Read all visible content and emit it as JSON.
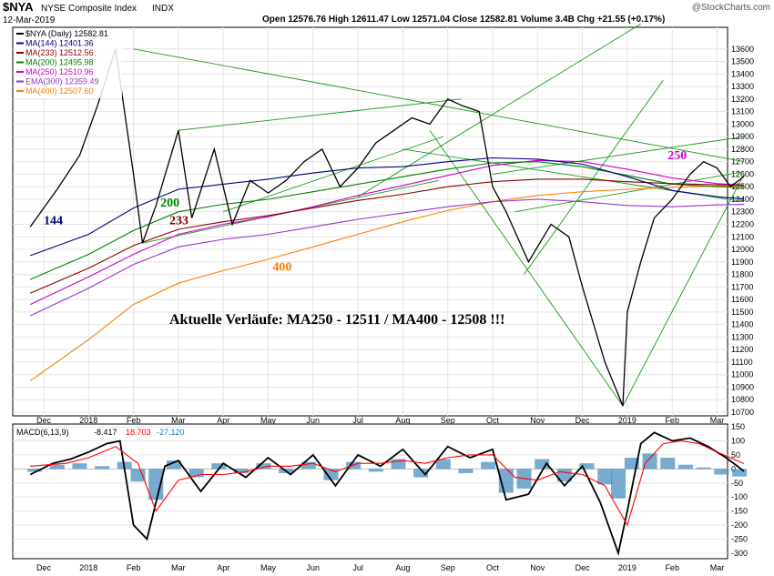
{
  "header": {
    "symbol": "$NYA",
    "name": "NYSE Composite Index",
    "exchange": "INDX",
    "date": "12-Mar-2019",
    "ohlc_text": "Open 12576.76  High 12611.47  Low 12571.04  Close 12582.81  Volume 3.4B  Chg +21.55 (+0.17%)",
    "watermark": "@StockCharts.com"
  },
  "chart_data": [
    {
      "type": "line",
      "title": "$NYA (Daily) 12582.81",
      "ylim": [
        10700,
        13700
      ],
      "yticks": [
        10700,
        10800,
        10900,
        11000,
        11100,
        11200,
        11300,
        11400,
        11500,
        11600,
        11700,
        11800,
        11900,
        12000,
        12100,
        12200,
        12300,
        12400,
        12500,
        12600,
        12700,
        12800,
        12900,
        13000,
        13100,
        13200,
        13300,
        13400,
        13500,
        13600
      ],
      "x_months": [
        "Dec",
        "2018",
        "Feb",
        "Mar",
        "Apr",
        "May",
        "Jun",
        "Jul",
        "Aug",
        "Sep",
        "Oct",
        "Nov",
        "Dec",
        "2019",
        "Feb",
        "Mar"
      ],
      "x_month_index": [
        0,
        1,
        2,
        3,
        4,
        5,
        6,
        7,
        8,
        9,
        10,
        11,
        12,
        13,
        14,
        15
      ],
      "series": [
        {
          "name": "$NYA (Daily)",
          "color": "#000000",
          "x": [
            -0.3,
            0.3,
            0.8,
            1.2,
            1.6,
            2.0,
            2.2,
            2.5,
            3.0,
            3.3,
            3.8,
            4.2,
            4.6,
            5.0,
            5.4,
            5.8,
            6.2,
            6.6,
            7.0,
            7.4,
            7.8,
            8.2,
            8.6,
            9.0,
            9.3,
            9.7,
            10.0,
            10.3,
            10.8,
            11.3,
            11.7,
            12.0,
            12.5,
            12.9,
            13.0,
            13.3,
            13.6,
            14.0,
            14.4,
            14.7,
            15.0,
            15.3,
            15.6
          ],
          "values": [
            12180,
            12480,
            12750,
            13150,
            13600,
            12600,
            12050,
            12350,
            12950,
            12250,
            12800,
            12200,
            12550,
            12450,
            12550,
            12700,
            12800,
            12500,
            12650,
            12850,
            12950,
            13050,
            13000,
            13200,
            13150,
            13100,
            12500,
            12300,
            11900,
            12200,
            12100,
            11700,
            11100,
            10750,
            11500,
            11900,
            12250,
            12400,
            12600,
            12700,
            12650,
            12500,
            12582
          ]
        },
        {
          "name": "MA(144)",
          "value": 12401.36,
          "color": "#000080",
          "label": "144",
          "x": [
            -0.3,
            1.0,
            2.0,
            3.0,
            4.0,
            5.0,
            6.0,
            7.0,
            8.0,
            9.0,
            10.0,
            11.0,
            12.0,
            13.0,
            14.0,
            15.0,
            15.6
          ],
          "values": [
            11950,
            12120,
            12330,
            12480,
            12520,
            12560,
            12610,
            12650,
            12660,
            12700,
            12730,
            12720,
            12680,
            12580,
            12470,
            12420,
            12401
          ]
        },
        {
          "name": "MA(233)",
          "value": 12512.56,
          "color": "#8b0000",
          "label": "233",
          "x": [
            -0.3,
            1.0,
            2.0,
            3.0,
            4.0,
            5.0,
            6.0,
            7.0,
            8.0,
            9.0,
            10.0,
            11.0,
            12.0,
            13.0,
            14.0,
            15.0,
            15.6
          ],
          "values": [
            11650,
            11850,
            12030,
            12160,
            12220,
            12270,
            12330,
            12390,
            12440,
            12500,
            12540,
            12560,
            12560,
            12540,
            12525,
            12515,
            12512
          ]
        },
        {
          "name": "MA(200)",
          "value": 12495.98,
          "color": "#008000",
          "label": "200",
          "x": [
            -0.3,
            1.0,
            2.0,
            3.0,
            4.0,
            5.0,
            6.0,
            7.0,
            8.0,
            9.0,
            10.0,
            11.0,
            12.0,
            13.0,
            14.0,
            15.0,
            15.6
          ],
          "values": [
            11760,
            11960,
            12150,
            12300,
            12360,
            12400,
            12460,
            12520,
            12580,
            12640,
            12690,
            12700,
            12660,
            12590,
            12520,
            12500,
            12496
          ]
        },
        {
          "name": "MA(250)",
          "value": 12510.96,
          "color": "#cc00cc",
          "label": "250",
          "x": [
            -0.3,
            1.0,
            2.0,
            3.0,
            4.0,
            5.0,
            6.0,
            7.0,
            8.0,
            9.0,
            10.0,
            11.0,
            12.0,
            13.0,
            14.0,
            15.0,
            15.6
          ],
          "values": [
            11560,
            11780,
            11960,
            12120,
            12200,
            12260,
            12340,
            12430,
            12510,
            12590,
            12670,
            12710,
            12700,
            12640,
            12570,
            12525,
            12511
          ]
        },
        {
          "name": "EMA(300)",
          "value": 12359.49,
          "color": "#9932cc",
          "x": [
            -0.3,
            1.0,
            2.0,
            3.0,
            4.0,
            5.0,
            6.0,
            7.0,
            8.0,
            9.0,
            10.0,
            11.0,
            12.0,
            13.0,
            14.0,
            15.0,
            15.6
          ],
          "values": [
            11470,
            11690,
            11880,
            12020,
            12080,
            12120,
            12180,
            12240,
            12290,
            12340,
            12380,
            12400,
            12380,
            12350,
            12340,
            12355,
            12359
          ]
        },
        {
          "name": "MA(400)",
          "value": 12507.6,
          "color": "#ff7f00",
          "label": "400",
          "x": [
            -0.3,
            1.0,
            2.0,
            3.0,
            4.0,
            5.0,
            6.0,
            7.0,
            8.0,
            9.0,
            10.0,
            11.0,
            12.0,
            13.0,
            14.0,
            15.0,
            15.6
          ],
          "values": [
            10950,
            11280,
            11560,
            11730,
            11830,
            11920,
            12020,
            12120,
            12220,
            12310,
            12380,
            12430,
            12460,
            12480,
            12495,
            12505,
            12508
          ]
        }
      ],
      "trendlines": [
        {
          "x": [
            2.0,
            15.6
          ],
          "values": [
            13600,
            12700
          ]
        },
        {
          "x": [
            2.2,
            8.8
          ],
          "values": [
            12050,
            12550
          ]
        },
        {
          "x": [
            3.0,
            9.3
          ],
          "values": [
            12950,
            13200
          ]
        },
        {
          "x": [
            4.0,
            8.9
          ],
          "values": [
            12300,
            12900
          ]
        },
        {
          "x": [
            7.0,
            13.3
          ],
          "values": [
            12420,
            13800
          ]
        },
        {
          "x": [
            8.0,
            15.6
          ],
          "values": [
            12800,
            12380
          ]
        },
        {
          "x": [
            8.6,
            12.9
          ],
          "values": [
            12950,
            10750
          ]
        },
        {
          "x": [
            10.7,
            13.8
          ],
          "values": [
            11800,
            13350
          ]
        },
        {
          "x": [
            10.5,
            15.6
          ],
          "values": [
            12300,
            12620
          ]
        },
        {
          "x": [
            12.9,
            15.6
          ],
          "values": [
            10750,
            12600
          ]
        },
        {
          "x": [
            10.0,
            15.6
          ],
          "values": [
            12600,
            12900
          ]
        }
      ],
      "annotation": "Aktuelle Verläufe: MA250 - 12511  /  MA400 - 12508 !!!"
    },
    {
      "type": "line",
      "title": "MACD(6,13,9)",
      "legend_values": [
        "-8.417",
        "18.703",
        "-27.120"
      ],
      "ylim": [
        -320,
        160
      ],
      "yticks": [
        150,
        100,
        50,
        0,
        -50,
        -100,
        -150,
        -200,
        -250,
        -300
      ],
      "series": [
        {
          "name": "MACD",
          "color": "#000000",
          "x": [
            -0.3,
            0.2,
            0.6,
            1.0,
            1.4,
            1.7,
            2.0,
            2.3,
            2.7,
            3.0,
            3.5,
            4.0,
            4.5,
            5.0,
            5.5,
            6.0,
            6.5,
            7.0,
            7.5,
            8.0,
            8.5,
            9.0,
            9.5,
            10.0,
            10.3,
            10.8,
            11.2,
            11.6,
            12.0,
            12.4,
            12.8,
            13.0,
            13.3,
            13.6,
            14.0,
            14.4,
            14.8,
            15.2,
            15.6
          ],
          "values": [
            -20,
            20,
            35,
            60,
            90,
            100,
            -200,
            -250,
            10,
            30,
            -80,
            20,
            -30,
            40,
            -20,
            50,
            -60,
            50,
            10,
            70,
            -20,
            80,
            40,
            70,
            -110,
            -90,
            20,
            -60,
            10,
            -120,
            -300,
            -150,
            90,
            130,
            100,
            110,
            80,
            40,
            -8
          ]
        },
        {
          "name": "Signal",
          "color": "#ff0000",
          "x": [
            -0.3,
            0.5,
            1.0,
            1.6,
            2.1,
            2.5,
            3.0,
            3.5,
            4.0,
            4.5,
            5.0,
            5.5,
            6.0,
            6.5,
            7.0,
            7.5,
            8.0,
            8.5,
            9.0,
            9.5,
            10.0,
            10.5,
            11.0,
            11.5,
            12.0,
            12.5,
            13.0,
            13.4,
            13.8,
            14.2,
            14.6,
            15.0,
            15.6
          ],
          "values": [
            10,
            20,
            40,
            80,
            20,
            -150,
            -40,
            -20,
            -20,
            -10,
            10,
            10,
            20,
            -10,
            20,
            20,
            30,
            20,
            40,
            50,
            50,
            -30,
            -40,
            -10,
            -20,
            -60,
            -200,
            20,
            90,
            100,
            90,
            60,
            19
          ]
        }
      ],
      "histogram": {
        "name": "Histogram",
        "color": "#4a8fc0",
        "x": [
          -0.2,
          0.3,
          0.8,
          1.3,
          1.8,
          2.1,
          2.5,
          2.9,
          3.4,
          3.9,
          4.4,
          4.9,
          5.4,
          5.9,
          6.4,
          6.9,
          7.4,
          7.9,
          8.4,
          8.9,
          9.4,
          9.9,
          10.3,
          10.7,
          11.1,
          11.6,
          12.1,
          12.5,
          12.8,
          13.1,
          13.5,
          13.9,
          14.3,
          14.7,
          15.1,
          15.5
        ],
        "values": [
          -10,
          15,
          20,
          10,
          25,
          -45,
          -110,
          30,
          -30,
          20,
          -15,
          20,
          -15,
          25,
          -40,
          25,
          -10,
          35,
          -30,
          35,
          -15,
          25,
          -85,
          -70,
          35,
          -45,
          20,
          -55,
          -105,
          40,
          55,
          40,
          15,
          5,
          -20,
          -27
        ]
      }
    }
  ]
}
